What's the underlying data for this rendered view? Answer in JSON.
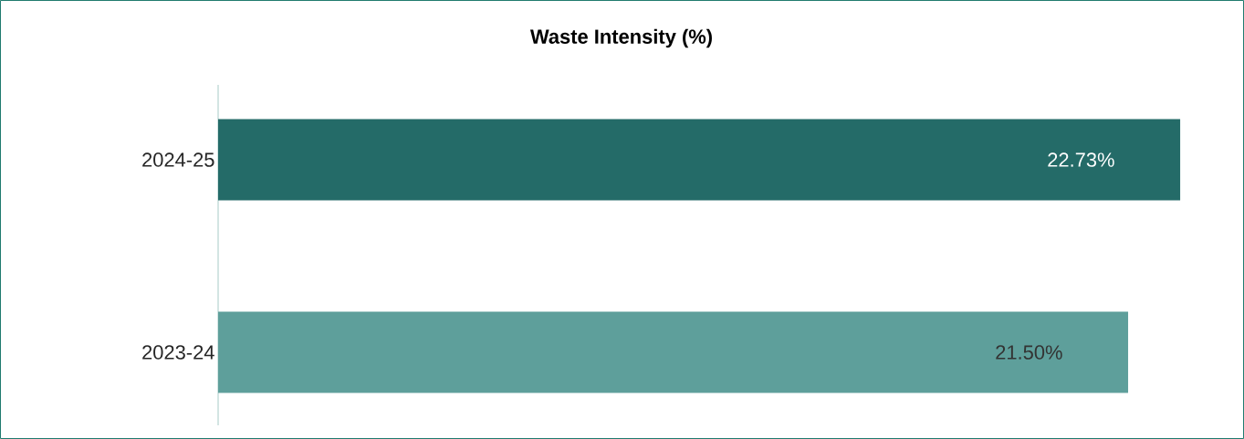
{
  "chart_data": {
    "type": "bar",
    "orientation": "horizontal",
    "title": "Waste Intensity (%)",
    "categories": [
      "2024-25",
      "2023-24"
    ],
    "values": [
      22.73,
      21.5
    ],
    "value_labels": [
      "22.73%",
      "21.50%"
    ],
    "colors": [
      "#246b68",
      "#5e9f9b"
    ]
  }
}
